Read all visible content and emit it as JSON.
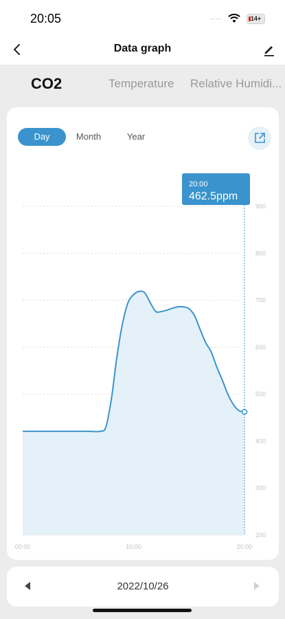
{
  "status_bar": {
    "time": "20:05",
    "dots": "····",
    "battery_label": "14+"
  },
  "nav": {
    "title": "Data graph",
    "back_icon": "chevron-left-icon",
    "edit_icon": "pencil-icon"
  },
  "tabs": [
    {
      "label": "CO2",
      "active": true
    },
    {
      "label": "Temperature",
      "active": false
    },
    {
      "label": "Relative Humidi..."
    }
  ],
  "range": {
    "day": "Day",
    "month": "Month",
    "year": "Year",
    "selected": "Day"
  },
  "export_icon": "share-export-icon",
  "colors": {
    "accent": "#3a93cc",
    "fill": "#e4f1f9",
    "grid": "#dcdcdc"
  },
  "tooltip": {
    "time": "20:00",
    "value": "462.5ppm"
  },
  "chart_data": {
    "type": "area",
    "ylim": [
      200,
      900
    ],
    "y_ticks": [
      "900",
      "800",
      "700",
      "600",
      "500",
      "400",
      "300",
      "200"
    ],
    "x_ticks": [
      "00:00",
      "10:00",
      "20:00"
    ],
    "x": [
      0,
      1,
      2,
      3,
      4,
      5,
      6,
      7,
      7.5,
      8,
      8.5,
      9,
      9.5,
      10,
      10.5,
      11,
      11.5,
      12,
      12.5,
      13,
      13.5,
      14,
      14.5,
      15,
      15.5,
      16,
      16.5,
      17,
      17.5,
      18,
      18.5,
      19,
      19.5,
      20
    ],
    "values": [
      421,
      421,
      421,
      421,
      421,
      421,
      421,
      421,
      430,
      490,
      580,
      650,
      695,
      712,
      719,
      716,
      695,
      676,
      676,
      679,
      683,
      686,
      686,
      682,
      667,
      638,
      610,
      590,
      558,
      530,
      500,
      478,
      465,
      462.5
    ],
    "grid": true,
    "tooltip_x": 20
  },
  "date_bar": {
    "date": "2022/10/26"
  }
}
